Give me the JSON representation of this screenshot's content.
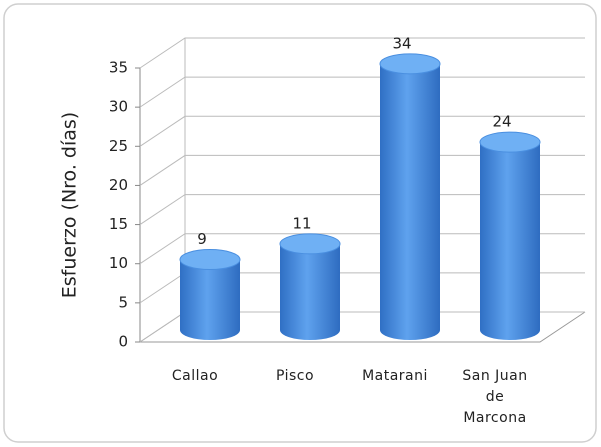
{
  "chart_data": {
    "type": "bar",
    "y_label": "Esfuerzo (Nro. días)",
    "categories": [
      "Callao",
      "Pisco",
      "Matarani",
      "San Juan de Marcona"
    ],
    "values": [
      9,
      11,
      34,
      24
    ],
    "color": "#3f86dc",
    "ylim": [
      0,
      35
    ],
    "yticks": [
      0,
      5,
      10,
      15,
      20,
      25,
      30,
      35
    ],
    "grid": true
  }
}
